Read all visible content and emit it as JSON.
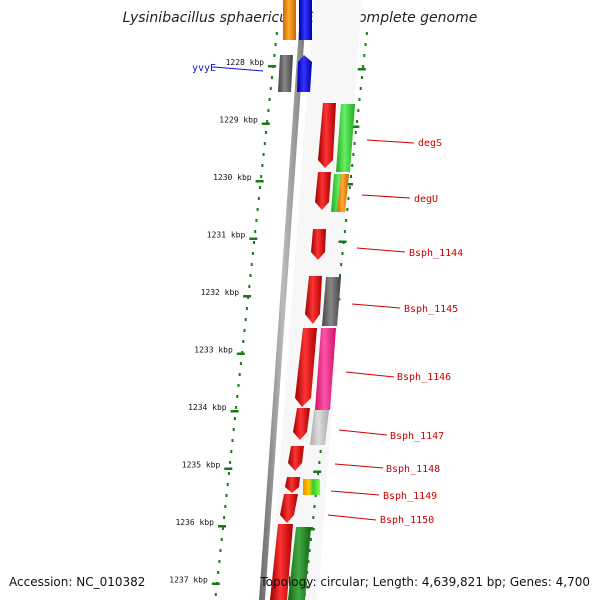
{
  "title": "Lysinibacillus sphaericus C3-41, complete genome",
  "footer": {
    "accession": "Accession: NC_010382",
    "topology": "Topology: circular; Length: 4,639,821 bp; Genes: 4,700"
  },
  "ticks": [
    "1228 kbp",
    "1229 kbp",
    "1230 kbp",
    "1231 kbp",
    "1232 kbp",
    "1233 kbp",
    "1234 kbp",
    "1235 kbp",
    "1236 kbp",
    "1237 kbp"
  ],
  "gene_labels": {
    "left": [
      {
        "name": "yvyE",
        "color": "#1111cc"
      }
    ],
    "right": [
      {
        "name": "degS",
        "color": "#cc0000"
      },
      {
        "name": "degU",
        "color": "#cc0000"
      },
      {
        "name": "Bsph_1144",
        "color": "#cc0000"
      },
      {
        "name": "Bsph_1145",
        "color": "#cc0000"
      },
      {
        "name": "Bsph_1146",
        "color": "#cc0000"
      },
      {
        "name": "Bsph_1147",
        "color": "#cc0000"
      },
      {
        "name": "Bsph_1148",
        "color": "#cc0000"
      },
      {
        "name": "Bsph_1149",
        "color": "#cc0000"
      },
      {
        "name": "Bsph_1150",
        "color": "#cc0000"
      }
    ]
  },
  "colors": {
    "backbone": "#888888",
    "tick": "#1a7a1a",
    "red": "#e00000",
    "blue": "#0000ee",
    "green": "#33cc33",
    "orange": "#ff8800",
    "grey": "#666666",
    "magenta": "#ff2a8a",
    "lightgrey": "#bbbbbb",
    "darkgreen": "#228822"
  }
}
